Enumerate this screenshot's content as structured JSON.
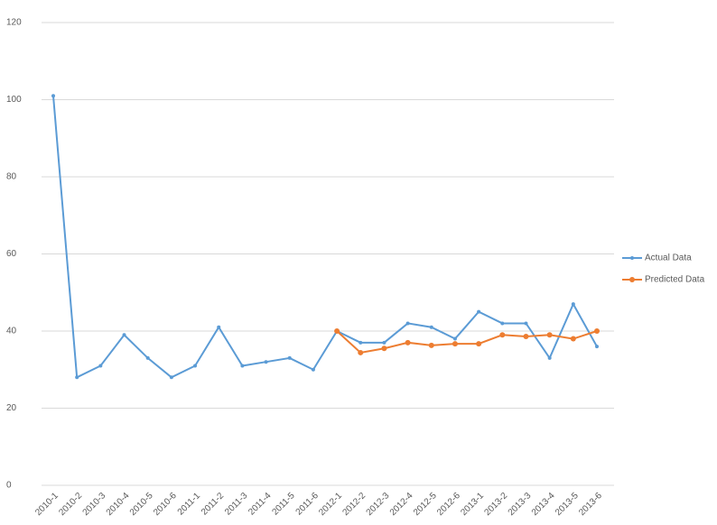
{
  "chart_data": {
    "type": "line",
    "categories": [
      "2010-1",
      "2010-2",
      "2010-3",
      "2010-4",
      "2010-5",
      "2010-6",
      "2011-1",
      "2011-2",
      "2011-3",
      "2011-4",
      "2011-5",
      "2011-6",
      "2012-1",
      "2012-2",
      "2012-3",
      "2012-4",
      "2012-5",
      "2012-6",
      "2013-1",
      "2013-2",
      "2013-3",
      "2013-4",
      "2013-5",
      "2013-6"
    ],
    "series": [
      {
        "name": "Actual Data",
        "color": "#5b9bd5",
        "values": [
          101,
          28,
          31,
          39,
          33,
          28,
          31,
          41,
          31,
          32,
          33,
          30,
          40,
          37,
          37,
          42,
          41,
          38,
          45,
          42,
          42,
          33,
          47,
          36
        ]
      },
      {
        "name": "Predicted Data",
        "color": "#ed7d31",
        "values": [
          null,
          null,
          null,
          null,
          null,
          null,
          null,
          null,
          null,
          null,
          null,
          null,
          40,
          34.4,
          35.5,
          37,
          36.3,
          36.7,
          36.7,
          39,
          38.6,
          39,
          38,
          40
        ]
      }
    ],
    "ylim": [
      0,
      120
    ],
    "yticks": [
      0,
      20,
      40,
      60,
      80,
      100,
      120
    ],
    "grid": true,
    "legend": "right"
  }
}
